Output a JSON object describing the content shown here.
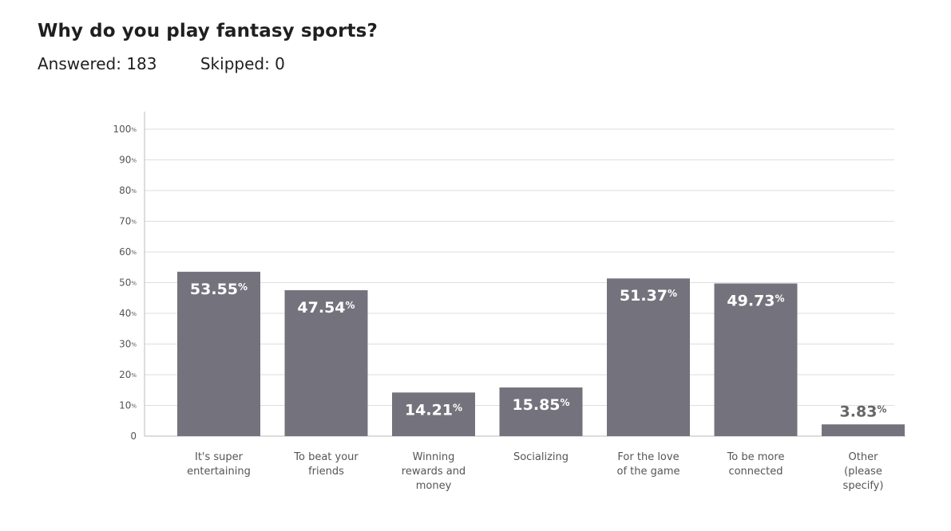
{
  "question": {
    "title": "Why do you play fantasy sports?",
    "answered": "Answered: 183",
    "skipped": "Skipped: 0"
  },
  "colors": {
    "bar": "#74737d",
    "grid": "#dedede",
    "axis": "#bbbbbb",
    "label_inside": "#ffffff",
    "label_outside": "#666666"
  },
  "chart_data": {
    "type": "bar",
    "categories": [
      [
        "It's super",
        "entertaining"
      ],
      [
        "To beat your",
        "friends"
      ],
      [
        "Winning",
        "rewards and",
        "money"
      ],
      [
        "Socializing"
      ],
      [
        "For the love",
        "of the game"
      ],
      [
        "To be more",
        "connected"
      ],
      [
        "Other",
        "(please",
        "specify)"
      ]
    ],
    "values": [
      53.55,
      47.54,
      14.21,
      15.85,
      51.37,
      49.73,
      3.83
    ],
    "value_labels": [
      "53.55",
      "47.54",
      "14.21",
      "15.85",
      "51.37",
      "49.73",
      "3.83"
    ],
    "value_suffix": "%",
    "ylim": [
      0,
      100
    ],
    "yticks": [
      0,
      10,
      20,
      30,
      40,
      50,
      60,
      70,
      80,
      90,
      100
    ],
    "ytick_suffix": "%",
    "grid": true
  }
}
